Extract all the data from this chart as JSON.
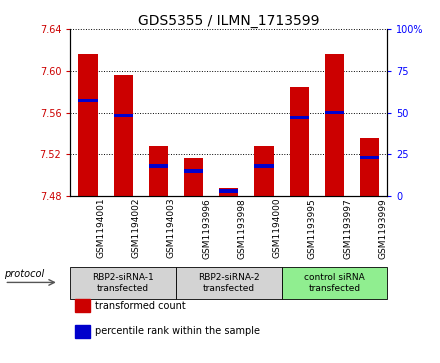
{
  "title": "GDS5355 / ILMN_1713599",
  "samples": [
    "GSM1194001",
    "GSM1194002",
    "GSM1194003",
    "GSM1193996",
    "GSM1193998",
    "GSM1194000",
    "GSM1193995",
    "GSM1193997",
    "GSM1193999"
  ],
  "transformed_counts": [
    7.616,
    7.596,
    7.528,
    7.516,
    7.488,
    7.528,
    7.584,
    7.616,
    7.536
  ],
  "percentile_ranks": [
    57,
    48,
    18,
    15,
    3,
    18,
    47,
    50,
    23
  ],
  "baseline": 7.48,
  "ylim_left": [
    7.48,
    7.64
  ],
  "ylim_right": [
    0,
    100
  ],
  "yticks_left": [
    7.48,
    7.52,
    7.56,
    7.6,
    7.64
  ],
  "yticks_right": [
    0,
    25,
    50,
    75,
    100
  ],
  "groups": [
    {
      "label": "RBP2-siRNA-1\ntransfected",
      "start": 0,
      "end": 2
    },
    {
      "label": "RBP2-siRNA-2\ntransfected",
      "start": 3,
      "end": 5
    },
    {
      "label": "control siRNA\ntransfected",
      "start": 6,
      "end": 8
    }
  ],
  "group_colors": [
    "#d3d3d3",
    "#d3d3d3",
    "#90ee90"
  ],
  "bar_color": "#cc0000",
  "blue_color": "#0000cc",
  "bar_width": 0.55,
  "background_color": "#ffffff",
  "title_fontsize": 10,
  "tick_fontsize": 7,
  "protocol_label": "protocol",
  "legend_items": [
    {
      "label": "transformed count",
      "color": "#cc0000"
    },
    {
      "label": "percentile rank within the sample",
      "color": "#0000cc"
    }
  ]
}
